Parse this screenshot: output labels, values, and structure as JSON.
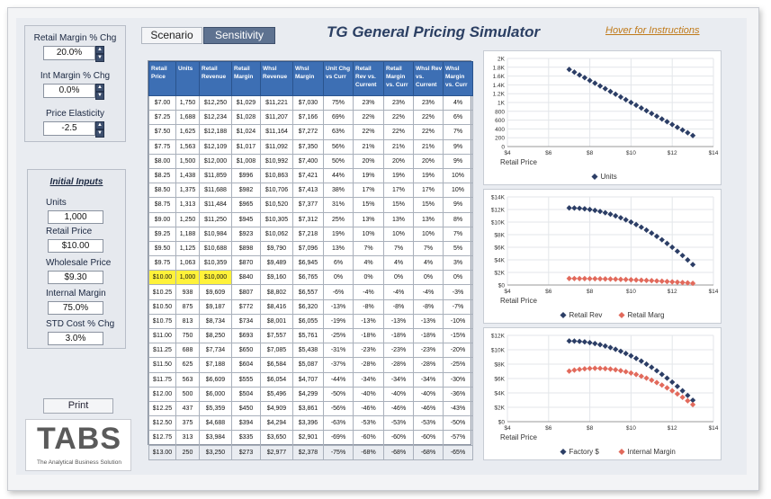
{
  "left_panel": {
    "retail_margin_label": "Retail Margin % Chg",
    "retail_margin_value": "20.0%",
    "int_margin_label": "Int Margin % Chg",
    "int_margin_value": "0.0%",
    "price_elasticity_label": "Price Elasticity",
    "price_elasticity_value": "-2.5",
    "initial_inputs_title": "Initial Inputs",
    "units_label": "Units",
    "units_value": "1,000",
    "retail_price_label": "Retail Price",
    "retail_price_value": "$10.00",
    "wholesale_price_label": "Wholesale Price",
    "wholesale_price_value": "$9.30",
    "internal_margin_label": "Internal Margin",
    "internal_margin_value": "75.0%",
    "std_cost_label": "STD Cost % Chg",
    "std_cost_value": "3.0%",
    "print_label": "Print",
    "logo_text": "TABS",
    "logo_tagline": "The Analytical Business Solution"
  },
  "header": {
    "tab_scenario": "Scenario",
    "tab_sensitivity": "Sensitivity",
    "title": "TG General Pricing Simulator",
    "hover_link": "Hover for Instructions"
  },
  "table": {
    "columns": [
      "Retail Price",
      "Units",
      "Retail Revenue",
      "Retail Margin",
      "Whsl Revenue",
      "Whsl Margin",
      "Unit Chg vs Curr",
      "Retail Rev vs. Current",
      "Retail Margin vs. Curr",
      "Whsl Rev vs. Current",
      "Whsl Margin vs. Curr"
    ],
    "highlight_row": 12,
    "rows": [
      [
        "$7.00",
        "1,750",
        "$12,250",
        "$1,029",
        "$11,221",
        "$7,030",
        "75%",
        "23%",
        "23%",
        "23%",
        "4%"
      ],
      [
        "$7.25",
        "1,688",
        "$12,234",
        "$1,028",
        "$11,207",
        "$7,166",
        "69%",
        "22%",
        "22%",
        "22%",
        "6%"
      ],
      [
        "$7.50",
        "1,625",
        "$12,188",
        "$1,024",
        "$11,164",
        "$7,272",
        "63%",
        "22%",
        "22%",
        "22%",
        "7%"
      ],
      [
        "$7.75",
        "1,563",
        "$12,109",
        "$1,017",
        "$11,092",
        "$7,350",
        "56%",
        "21%",
        "21%",
        "21%",
        "9%"
      ],
      [
        "$8.00",
        "1,500",
        "$12,000",
        "$1,008",
        "$10,992",
        "$7,400",
        "50%",
        "20%",
        "20%",
        "20%",
        "9%"
      ],
      [
        "$8.25",
        "1,438",
        "$11,859",
        "$996",
        "$10,863",
        "$7,421",
        "44%",
        "19%",
        "19%",
        "19%",
        "10%"
      ],
      [
        "$8.50",
        "1,375",
        "$11,688",
        "$982",
        "$10,706",
        "$7,413",
        "38%",
        "17%",
        "17%",
        "17%",
        "10%"
      ],
      [
        "$8.75",
        "1,313",
        "$11,484",
        "$965",
        "$10,520",
        "$7,377",
        "31%",
        "15%",
        "15%",
        "15%",
        "9%"
      ],
      [
        "$9.00",
        "1,250",
        "$11,250",
        "$945",
        "$10,305",
        "$7,312",
        "25%",
        "13%",
        "13%",
        "13%",
        "8%"
      ],
      [
        "$9.25",
        "1,188",
        "$10,984",
        "$923",
        "$10,062",
        "$7,218",
        "19%",
        "10%",
        "10%",
        "10%",
        "7%"
      ],
      [
        "$9.50",
        "1,125",
        "$10,688",
        "$898",
        "$9,790",
        "$7,096",
        "13%",
        "7%",
        "7%",
        "7%",
        "5%"
      ],
      [
        "$9.75",
        "1,063",
        "$10,359",
        "$870",
        "$9,489",
        "$6,945",
        "6%",
        "4%",
        "4%",
        "4%",
        "3%"
      ],
      [
        "$10.00",
        "1,000",
        "$10,000",
        "$840",
        "$9,160",
        "$6,765",
        "0%",
        "0%",
        "0%",
        "0%",
        "0%"
      ],
      [
        "$10.25",
        "938",
        "$9,609",
        "$807",
        "$8,802",
        "$6,557",
        "-6%",
        "-4%",
        "-4%",
        "-4%",
        "-3%"
      ],
      [
        "$10.50",
        "875",
        "$9,187",
        "$772",
        "$8,416",
        "$6,320",
        "-13%",
        "-8%",
        "-8%",
        "-8%",
        "-7%"
      ],
      [
        "$10.75",
        "813",
        "$8,734",
        "$734",
        "$8,001",
        "$6,055",
        "-19%",
        "-13%",
        "-13%",
        "-13%",
        "-10%"
      ],
      [
        "$11.00",
        "750",
        "$8,250",
        "$693",
        "$7,557",
        "$5,761",
        "-25%",
        "-18%",
        "-18%",
        "-18%",
        "-15%"
      ],
      [
        "$11.25",
        "688",
        "$7,734",
        "$650",
        "$7,085",
        "$5,438",
        "-31%",
        "-23%",
        "-23%",
        "-23%",
        "-20%"
      ],
      [
        "$11.50",
        "625",
        "$7,188",
        "$604",
        "$6,584",
        "$5,087",
        "-37%",
        "-28%",
        "-28%",
        "-28%",
        "-25%"
      ],
      [
        "$11.75",
        "563",
        "$6,609",
        "$555",
        "$6,054",
        "$4,707",
        "-44%",
        "-34%",
        "-34%",
        "-34%",
        "-30%"
      ],
      [
        "$12.00",
        "500",
        "$6,000",
        "$504",
        "$5,496",
        "$4,299",
        "-50%",
        "-40%",
        "-40%",
        "-40%",
        "-36%"
      ],
      [
        "$12.25",
        "437",
        "$5,359",
        "$450",
        "$4,909",
        "$3,861",
        "-56%",
        "-46%",
        "-46%",
        "-46%",
        "-43%"
      ],
      [
        "$12.50",
        "375",
        "$4,688",
        "$394",
        "$4,294",
        "$3,396",
        "-63%",
        "-53%",
        "-53%",
        "-53%",
        "-50%"
      ],
      [
        "$12.75",
        "313",
        "$3,984",
        "$335",
        "$3,650",
        "$2,901",
        "-69%",
        "-60%",
        "-60%",
        "-60%",
        "-57%"
      ],
      [
        "$13.00",
        "250",
        "$3,250",
        "$273",
        "$2,977",
        "$2,378",
        "-75%",
        "-68%",
        "-68%",
        "-68%",
        "-65%"
      ]
    ]
  },
  "chart_data": [
    {
      "type": "scatter",
      "xlabel": "Retail Price",
      "xlim": [
        4,
        14
      ],
      "xticks": [
        "$4",
        "$6",
        "$8",
        "$10",
        "$12",
        "$14"
      ],
      "ylim": [
        0,
        2000
      ],
      "yticks": [
        "0",
        "200",
        "400",
        "600",
        "800",
        "1K",
        "1.2K",
        "1.4K",
        "1.6K",
        "1.8K",
        "2K"
      ],
      "x": [
        7,
        7.25,
        7.5,
        7.75,
        8,
        8.25,
        8.5,
        8.75,
        9,
        9.25,
        9.5,
        9.75,
        10,
        10.25,
        10.5,
        10.75,
        11,
        11.25,
        11.5,
        11.75,
        12,
        12.25,
        12.5,
        12.75,
        13
      ],
      "series": [
        {
          "name": "Units",
          "color": "#2c3e66",
          "values": [
            1750,
            1688,
            1625,
            1563,
            1500,
            1438,
            1375,
            1313,
            1250,
            1188,
            1125,
            1063,
            1000,
            938,
            875,
            813,
            750,
            688,
            625,
            563,
            500,
            437,
            375,
            313,
            250
          ]
        }
      ]
    },
    {
      "type": "scatter",
      "xlabel": "Retail Price",
      "xlim": [
        4,
        14
      ],
      "xticks": [
        "$4",
        "$6",
        "$8",
        "$10",
        "$12",
        "$14"
      ],
      "ylim": [
        0,
        14000
      ],
      "yticks": [
        "$0",
        "$2K",
        "$4K",
        "$6K",
        "$8K",
        "$10K",
        "$12K",
        "$14K"
      ],
      "x": [
        7,
        7.25,
        7.5,
        7.75,
        8,
        8.25,
        8.5,
        8.75,
        9,
        9.25,
        9.5,
        9.75,
        10,
        10.25,
        10.5,
        10.75,
        11,
        11.25,
        11.5,
        11.75,
        12,
        12.25,
        12.5,
        12.75,
        13
      ],
      "series": [
        {
          "name": "Retail Rev",
          "color": "#2c3e66",
          "values": [
            12250,
            12234,
            12188,
            12109,
            12000,
            11859,
            11688,
            11484,
            11250,
            10984,
            10688,
            10359,
            10000,
            9609,
            9187,
            8734,
            8250,
            7734,
            7188,
            6609,
            6000,
            5359,
            4688,
            3984,
            3250
          ]
        },
        {
          "name": "Retail Marg",
          "color": "#e26a5c",
          "values": [
            1029,
            1028,
            1024,
            1017,
            1008,
            996,
            982,
            965,
            945,
            923,
            898,
            870,
            840,
            807,
            772,
            734,
            693,
            650,
            604,
            555,
            504,
            450,
            394,
            335,
            273
          ]
        }
      ]
    },
    {
      "type": "scatter",
      "xlabel": "Retail Price",
      "xlim": [
        4,
        14
      ],
      "xticks": [
        "$4",
        "$6",
        "$8",
        "$10",
        "$12",
        "$14"
      ],
      "ylim": [
        0,
        12000
      ],
      "yticks": [
        "$0",
        "$2K",
        "$4K",
        "$6K",
        "$8K",
        "$10K",
        "$12K"
      ],
      "x": [
        7,
        7.25,
        7.5,
        7.75,
        8,
        8.25,
        8.5,
        8.75,
        9,
        9.25,
        9.5,
        9.75,
        10,
        10.25,
        10.5,
        10.75,
        11,
        11.25,
        11.5,
        11.75,
        12,
        12.25,
        12.5,
        12.75,
        13
      ],
      "series": [
        {
          "name": "Factory $",
          "color": "#2c3e66",
          "values": [
            11221,
            11207,
            11164,
            11092,
            10992,
            10863,
            10706,
            10520,
            10305,
            10062,
            9790,
            9489,
            9160,
            8802,
            8416,
            8001,
            7557,
            7085,
            6584,
            6054,
            5496,
            4909,
            4294,
            3650,
            2977
          ]
        },
        {
          "name": "Internal Margin",
          "color": "#e26a5c",
          "values": [
            7030,
            7166,
            7272,
            7350,
            7400,
            7421,
            7413,
            7377,
            7312,
            7218,
            7096,
            6945,
            6765,
            6557,
            6320,
            6055,
            5761,
            5438,
            5087,
            4707,
            4299,
            3861,
            3396,
            2901,
            2378
          ]
        }
      ]
    }
  ]
}
